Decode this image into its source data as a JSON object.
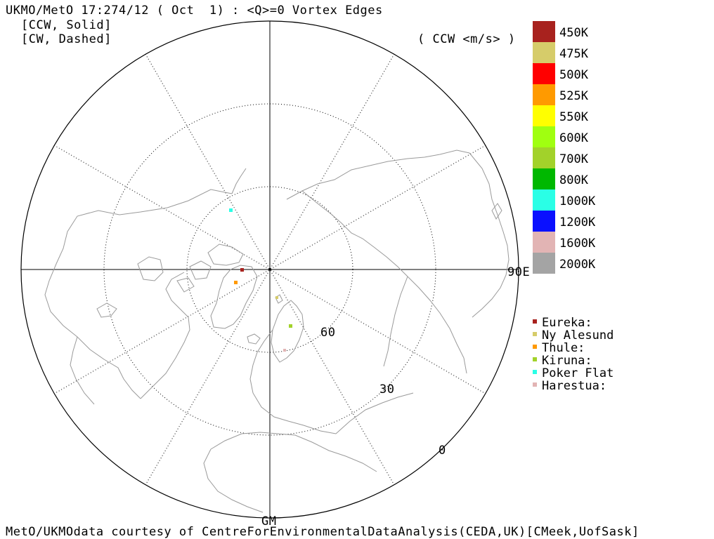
{
  "header": {
    "title": "UKMO/MetO 17:274/12 ( Oct  1) : <Q>=0 Vortex Edges",
    "ccw_line": "[CCW, Solid]",
    "cw_line": "[CW, Dashed]",
    "units": "( CCW <m/s> )"
  },
  "legend": {
    "items": [
      {
        "label": "450K",
        "color": "#a8221e"
      },
      {
        "label": "475K",
        "color": "#d6cc6a"
      },
      {
        "label": "500K",
        "color": "#ff0000"
      },
      {
        "label": "525K",
        "color": "#ff9a00"
      },
      {
        "label": "550K",
        "color": "#ffff00"
      },
      {
        "label": "600K",
        "color": "#a0ff10"
      },
      {
        "label": "700K",
        "color": "#a2d22a"
      },
      {
        "label": "800K",
        "color": "#00b800"
      },
      {
        "label": "1000K",
        "color": "#2affe6"
      },
      {
        "label": "1200K",
        "color": "#0a10ff"
      },
      {
        "label": "1600K",
        "color": "#e2b4b4"
      },
      {
        "label": "2000K",
        "color": "#a4a4a4"
      }
    ]
  },
  "map_labels": {
    "lon_90e": "90E",
    "lon_gm": "GM",
    "lat_60": "60",
    "lat_30": "30",
    "lat_0": "0"
  },
  "stations": [
    {
      "name": "Eureka:",
      "color": "#a8221e"
    },
    {
      "name": "Ny Alesund",
      "color": "#d6cc6a"
    },
    {
      "name": "Thule:",
      "color": "#ff9a00"
    },
    {
      "name": "Kiruna:",
      "color": "#a2d22a"
    },
    {
      "name": "Poker Flat",
      "color": "#2affe6"
    },
    {
      "name": "Harestua:",
      "color": "#e2b4b4"
    }
  ],
  "footer": {
    "credit": "MetO/UKMOdata courtesy of CentreForEnvironmentalDataAnalysis(CEDA,UK)[CMeek,UofSask]"
  }
}
